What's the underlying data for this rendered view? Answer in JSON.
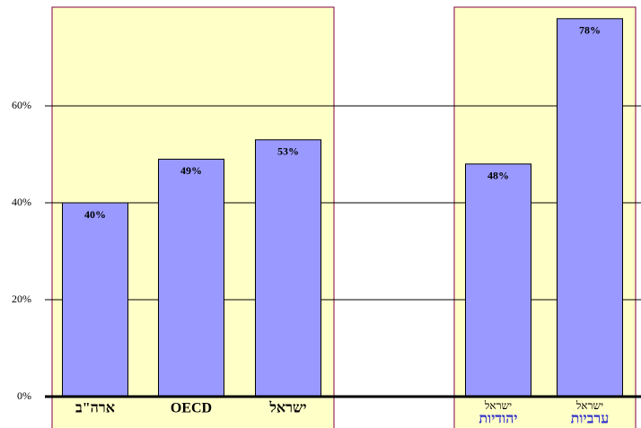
{
  "chart_data": {
    "type": "bar",
    "categories": [
      "ארה\"ב",
      "OECD",
      "ישראל",
      null,
      "ישראל",
      "ישראל"
    ],
    "category_sublabels": [
      null,
      null,
      null,
      null,
      "יהודיות",
      "ערביות"
    ],
    "values": [
      40,
      49,
      53,
      null,
      48,
      78
    ],
    "value_labels": [
      "40%",
      "49%",
      "53%",
      null,
      "48%",
      "78%"
    ],
    "color": "#9999ff",
    "ylim": [
      0,
      80
    ],
    "yticks": [
      {
        "value": 0,
        "label": "0%"
      },
      {
        "value": 20,
        "label": "20%"
      },
      {
        "value": 40,
        "label": "40%"
      },
      {
        "value": 60,
        "label": "60%"
      }
    ],
    "grid": true
  }
}
